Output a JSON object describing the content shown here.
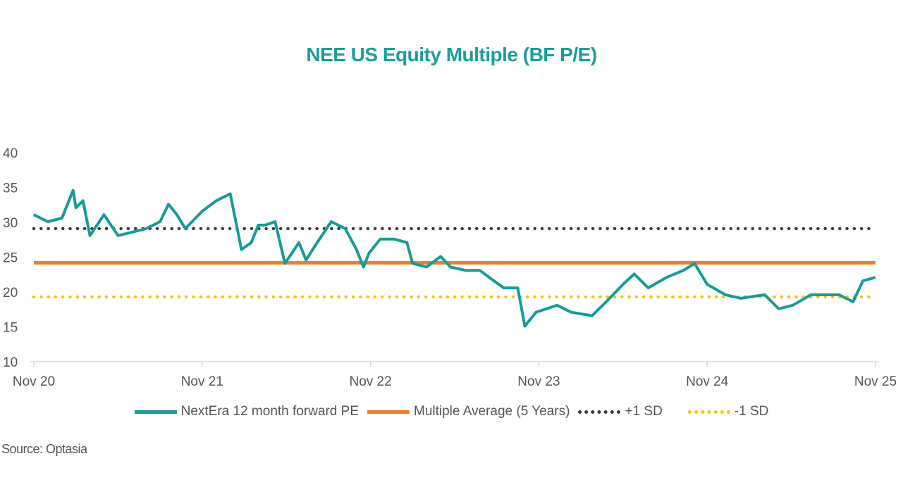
{
  "chart_data": {
    "type": "line",
    "title": "NEE US Equity Multiple (BF P/E)",
    "source": "Source: Optasia",
    "xlabel": "",
    "ylabel": "",
    "x_unit": "months since Nov 2020",
    "xlim": [
      0,
      60
    ],
    "ylim": [
      10,
      40
    ],
    "yticks": [
      10,
      15,
      20,
      25,
      30,
      35,
      40
    ],
    "xticks": [
      {
        "month": 0,
        "label": "Nov 20"
      },
      {
        "month": 12,
        "label": "Nov 21"
      },
      {
        "month": 24,
        "label": "Nov 22"
      },
      {
        "month": 36,
        "label": "Nov 23"
      },
      {
        "month": 48,
        "label": "Nov 24"
      },
      {
        "month": 60,
        "label": "Nov 25"
      }
    ],
    "grid": false,
    "legend_placement": "bottom",
    "series": [
      {
        "name": "NextEra 12 month forward PE",
        "color": "#179b98",
        "style": "solid",
        "x": [
          0,
          1,
          2,
          2.8,
          3,
          3.5,
          4,
          5,
          6,
          7,
          8,
          9,
          9.6,
          10.2,
          10.8,
          12,
          13,
          14,
          14.8,
          15.5,
          16,
          16.5,
          17.2,
          17.9,
          18.9,
          19.4,
          20.2,
          21.2,
          22.2,
          23,
          23.5,
          23.9,
          24.7,
          25.7,
          26.6,
          27,
          28,
          29,
          29.7,
          30.8,
          31.8,
          32.8,
          33.5,
          34.5,
          35,
          35.8,
          37.3,
          38.3,
          39.8,
          40.8,
          42,
          42.8,
          43.8,
          45.1,
          46.3,
          47.1,
          48,
          49.3,
          50.4,
          52.1,
          53.1,
          54.1,
          55.4,
          56.4,
          57.4,
          58.4,
          59.1,
          60
        ],
        "values": [
          31,
          30,
          30.5,
          34.5,
          32,
          33,
          28,
          31,
          28,
          28.5,
          29,
          30,
          32.5,
          31,
          29,
          31.5,
          33,
          34,
          26,
          27,
          29.5,
          29.5,
          30,
          24,
          27,
          24.5,
          27,
          30,
          29,
          26,
          23.5,
          25.5,
          27.5,
          27.5,
          27,
          24,
          23.5,
          25,
          23.5,
          23,
          23,
          21.5,
          20.5,
          20.5,
          15,
          17,
          18,
          17,
          16.5,
          18.5,
          21,
          22.5,
          20.5,
          22,
          23,
          24,
          21,
          19.5,
          19,
          19.5,
          17.5,
          18,
          19.5,
          19.5,
          19.5,
          18.5,
          21.5,
          22
        ]
      },
      {
        "name": "Multiple Average (5 Years)",
        "color": "#ed7d31",
        "style": "solid",
        "value": 24.1
      },
      {
        "name": "+1 SD",
        "color": "#3a3a3a",
        "style": "dotted",
        "value": 29.0
      },
      {
        "name": "-1 SD",
        "color": "#ffc000",
        "style": "dotted",
        "value": 19.2
      }
    ]
  }
}
